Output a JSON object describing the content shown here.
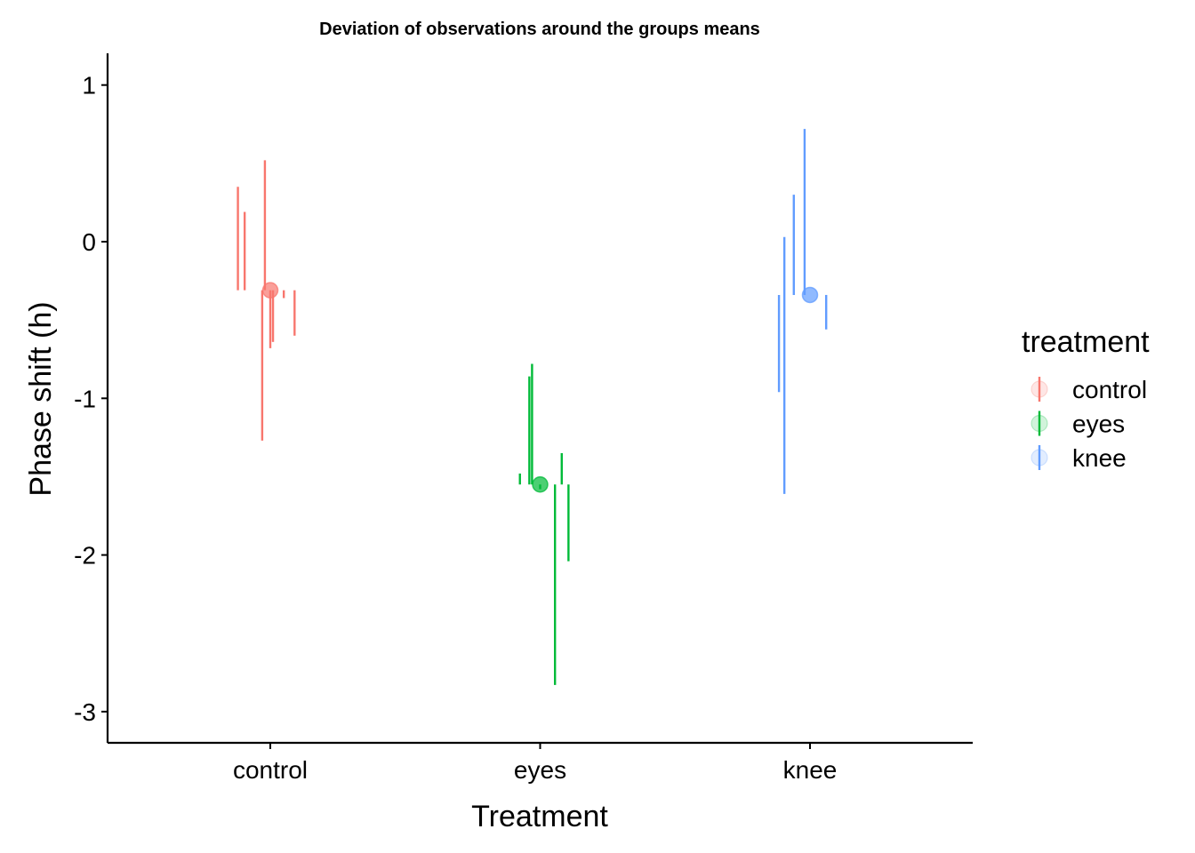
{
  "chart_data": {
    "type": "scatter",
    "title": "Deviation of observations around the groups means",
    "xlabel": "Treatment",
    "ylabel": "Phase shift (h)",
    "categories": [
      "control",
      "eyes",
      "knee"
    ],
    "ylim": [
      -3.2,
      1.2
    ],
    "yticks": [
      "-3",
      "-2",
      "-1",
      "0",
      "1"
    ],
    "grid": false,
    "legend": {
      "title": "treatment",
      "position": "right",
      "entries": [
        "control",
        "eyes",
        "knee"
      ]
    },
    "colors": {
      "control": "#F8766D",
      "eyes": "#00BA38",
      "knee": "#619CFF"
    },
    "groups": [
      {
        "name": "control",
        "mean": -0.31,
        "observations": [
          {
            "x": 0.88,
            "y": 0.35
          },
          {
            "x": 0.905,
            "y": 0.19
          },
          {
            "x": 0.97,
            "y": -1.27
          },
          {
            "x": 0.98,
            "y": 0.52
          },
          {
            "x": 1.0,
            "y": -0.68
          },
          {
            "x": 1.01,
            "y": -0.64
          },
          {
            "x": 1.05,
            "y": -0.36
          },
          {
            "x": 1.09,
            "y": -0.6
          }
        ]
      },
      {
        "name": "eyes",
        "mean": -1.55,
        "observations": [
          {
            "x": 1.925,
            "y": -1.48
          },
          {
            "x": 1.96,
            "y": -0.86
          },
          {
            "x": 1.97,
            "y": -0.78
          },
          {
            "x": 2.0,
            "y": -1.58
          },
          {
            "x": 2.055,
            "y": -2.83
          },
          {
            "x": 2.08,
            "y": -1.35
          },
          {
            "x": 2.105,
            "y": -2.04
          }
        ]
      },
      {
        "name": "knee",
        "mean": -0.34,
        "observations": [
          {
            "x": 2.885,
            "y": -0.96
          },
          {
            "x": 2.905,
            "y": -1.61
          },
          {
            "x": 2.905,
            "y": 0.03
          },
          {
            "x": 2.94,
            "y": 0.3
          },
          {
            "x": 2.98,
            "y": 0.72
          },
          {
            "x": 3.06,
            "y": -0.56
          }
        ]
      }
    ]
  }
}
